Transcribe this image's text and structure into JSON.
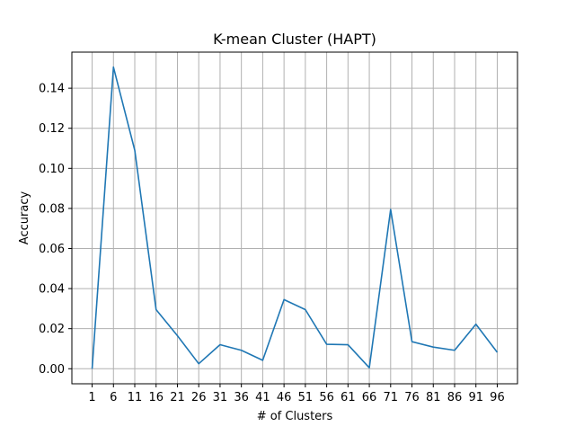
{
  "chart_data": {
    "type": "line",
    "title": "K-mean Cluster (HAPT)",
    "xlabel": "# of Clusters",
    "ylabel": "Accuracy",
    "x": [
      1,
      6,
      11,
      16,
      21,
      26,
      31,
      36,
      41,
      46,
      51,
      56,
      61,
      66,
      71,
      76,
      81,
      86,
      91,
      96
    ],
    "xticks": [
      "1",
      "6",
      "11",
      "16",
      "21",
      "26",
      "31",
      "36",
      "41",
      "46",
      "51",
      "56",
      "61",
      "66",
      "71",
      "76",
      "81",
      "86",
      "91",
      "96"
    ],
    "yticks": [
      "0.00",
      "0.02",
      "0.04",
      "0.06",
      "0.08",
      "0.10",
      "0.12",
      "0.14"
    ],
    "ytick_values": [
      0,
      0.02,
      0.04,
      0.06,
      0.08,
      0.1,
      0.12,
      0.14
    ],
    "series": [
      {
        "color": "#1f77b4",
        "values": [
          0.0,
          0.1505,
          0.109,
          0.0295,
          0.0165,
          0.0025,
          0.012,
          0.0092,
          0.0042,
          0.0345,
          0.0295,
          0.0122,
          0.012,
          0.0005,
          0.0795,
          0.0135,
          0.0108,
          0.0092,
          0.0222,
          0.0082
        ]
      }
    ],
    "xlim": [
      -3.75,
      100.75
    ],
    "ylim": [
      -0.0075,
      0.158
    ],
    "grid": true,
    "legend": "none"
  }
}
